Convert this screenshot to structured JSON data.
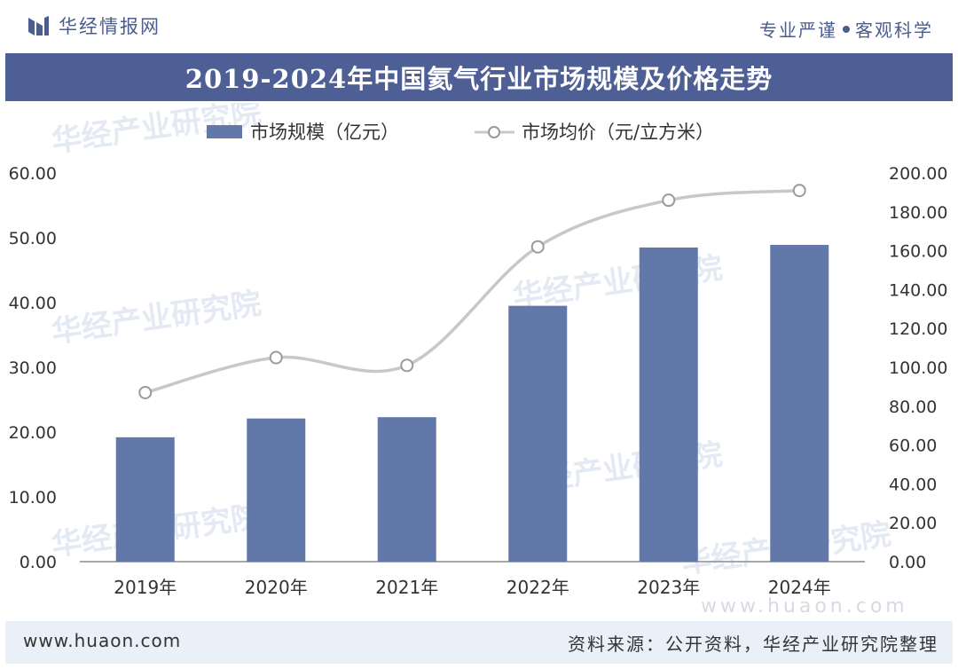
{
  "header": {
    "brand": "华经情报网",
    "slogan_left": "专业严谨",
    "slogan_right": "客观科学"
  },
  "colors": {
    "title_bg": "#4e5f95",
    "bar": "#6178a8",
    "line": "#c8c8c8",
    "marker_fill": "#ffffff",
    "marker_stroke": "#9a9a9a",
    "footer_bg": "#eaf0f7"
  },
  "chart_data": {
    "type": "bar",
    "title": "2019-2024年中国氦气行业市场规模及价格走势",
    "categories": [
      "2019年",
      "2020年",
      "2021年",
      "2022年",
      "2023年",
      "2024年"
    ],
    "series": [
      {
        "name": "市场规模（亿元）",
        "type": "bar",
        "axis": "left",
        "values": [
          19.2,
          22.1,
          22.3,
          39.5,
          48.5,
          48.9
        ]
      },
      {
        "name": "市场均价（元/立方米）",
        "type": "line",
        "axis": "right",
        "values": [
          87,
          105,
          101,
          162,
          186,
          191
        ]
      }
    ],
    "ylim_left": [
      0,
      60
    ],
    "yticks_left": [
      "0.00",
      "10.00",
      "20.00",
      "30.00",
      "40.00",
      "50.00",
      "60.00"
    ],
    "ylim_right": [
      0,
      200
    ],
    "yticks_right": [
      "0.00",
      "20.00",
      "40.00",
      "60.00",
      "80.00",
      "100.00",
      "120.00",
      "140.00",
      "160.00",
      "180.00",
      "200.00"
    ],
    "legend_position": "top-center",
    "grid": false
  },
  "watermarks": {
    "text": "华经产业研究院",
    "url": "www.huaon.com"
  },
  "footer": {
    "site": "www.huaon.com",
    "source": "资料来源：公开资料，华经产业研究院整理"
  }
}
